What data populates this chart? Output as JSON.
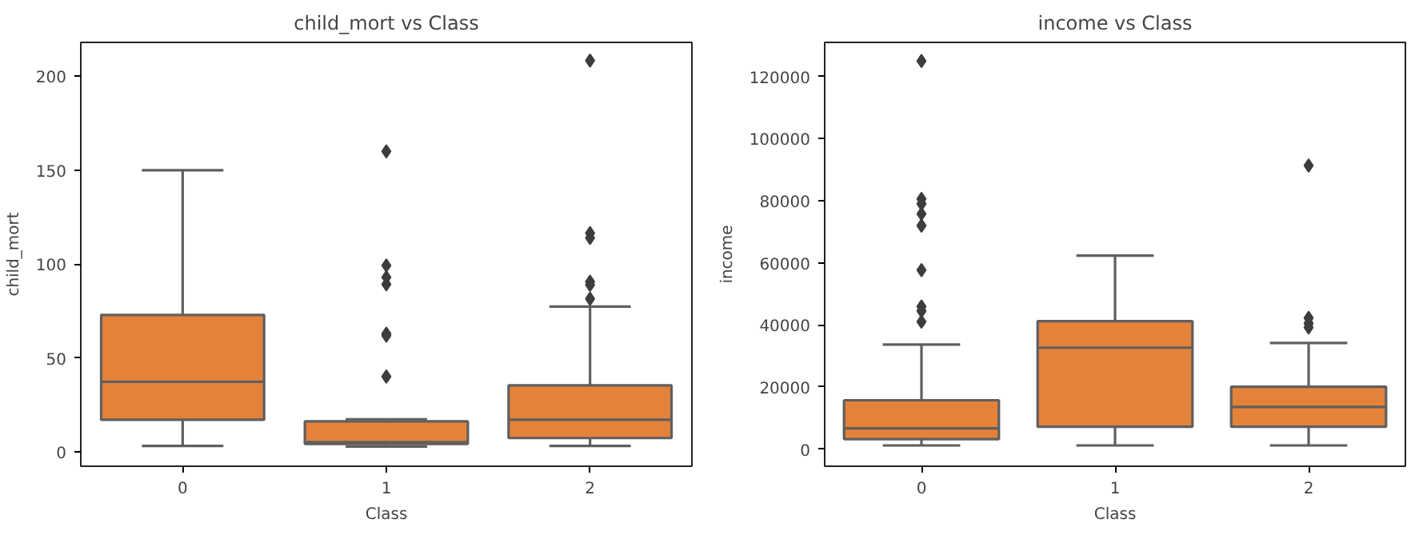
{
  "chart_data": [
    {
      "type": "box",
      "title": "child_mort vs Class",
      "xlabel": "Class",
      "ylabel": "child_mort",
      "categories": [
        "0",
        "1",
        "2"
      ],
      "color": "#e5823a",
      "marker": "diamond",
      "grid": false,
      "ylim": [
        -7.5,
        218
      ],
      "yticks": [
        0,
        50,
        100,
        150,
        200
      ],
      "boxes": [
        {
          "low": 3.3,
          "q1": 17.2,
          "median": 37.4,
          "q3": 73,
          "high": 150
        },
        {
          "low": 3,
          "q1": 4.4,
          "median": 5.3,
          "q3": 16.4,
          "high": 17.5,
          "outliers": [
            160,
            99.3,
            93,
            89.3,
            63,
            62,
            40.2
          ]
        },
        {
          "low": 3.3,
          "q1": 7.5,
          "median": 17.2,
          "q3": 35.5,
          "high": 77.4,
          "outliers": [
            208.3,
            116.5,
            114,
            90.7,
            89,
            81.6
          ]
        }
      ]
    },
    {
      "type": "box",
      "title": "income vs Class",
      "xlabel": "Class",
      "ylabel": "income",
      "categories": [
        "0",
        "1",
        "2"
      ],
      "color": "#e5823a",
      "marker": "diamond",
      "grid": false,
      "ylim": [
        -5500,
        131000
      ],
      "yticks": [
        0,
        20000,
        40000,
        60000,
        80000,
        100000,
        120000
      ],
      "boxes": [
        {
          "low": 1200,
          "q1": 3200,
          "median": 6700,
          "q3": 15750,
          "high": 33700,
          "outliers": [
            125000,
            80600,
            79000,
            75750,
            72000,
            57650,
            45900,
            44500,
            41060
          ]
        },
        {
          "low": 1200,
          "q1": 7200,
          "median": 32680,
          "q3": 41230,
          "high": 62340
        },
        {
          "low": 1200,
          "q1": 7200,
          "median": 13570,
          "q3": 20100,
          "high": 34190,
          "outliers": [
            91330,
            42230,
            40500,
            39200
          ]
        }
      ]
    }
  ]
}
